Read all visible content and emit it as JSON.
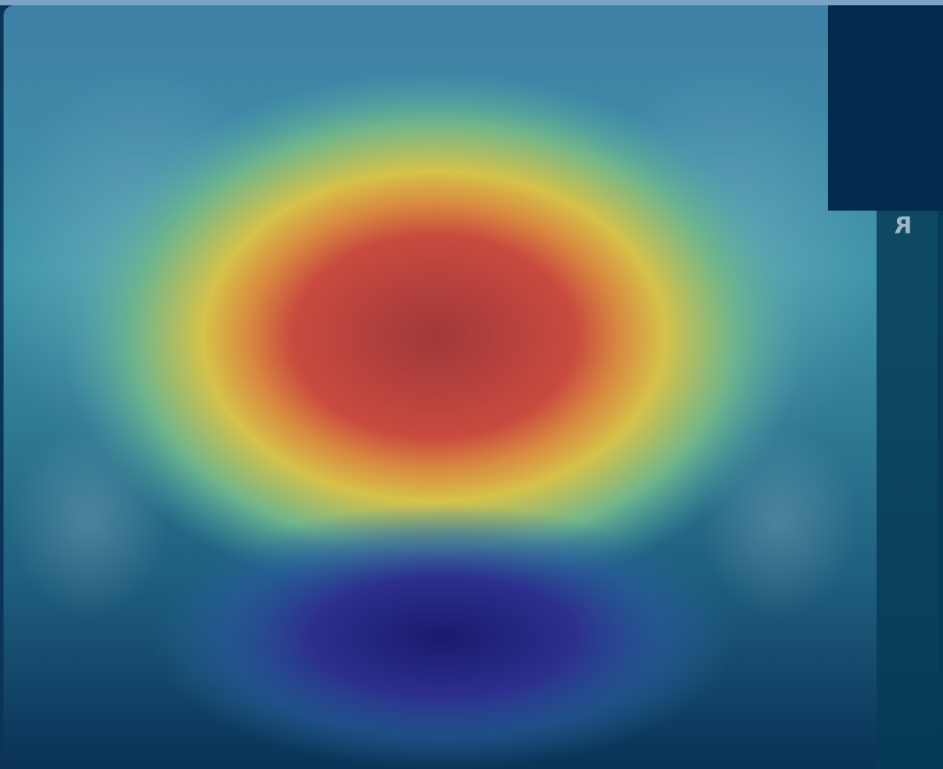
{
  "image": {
    "marker": "R"
  }
}
